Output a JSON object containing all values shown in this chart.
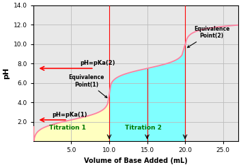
{
  "xlabel": "Volume of Base Added (mL)",
  "ylabel": "pH",
  "xlim": [
    0,
    27
  ],
  "ylim": [
    0,
    14
  ],
  "xticks": [
    5.0,
    10.0,
    15.0,
    20.0,
    25.0
  ],
  "yticks": [
    2.0,
    4.0,
    6.0,
    8.0,
    10.0,
    12.0,
    14.0
  ],
  "pKa1": 2.2,
  "pKa2": 7.5,
  "eq1_x": 10.0,
  "eq2_x": 20.0,
  "curve_color": "#FF80A0",
  "fill1_color": "#FFFFC0",
  "fill2_color": "#80FFFF",
  "arrow_color": "red",
  "line_color": "red",
  "bg_color": "#E8E8E8",
  "grid_color": "#BBBBBB"
}
